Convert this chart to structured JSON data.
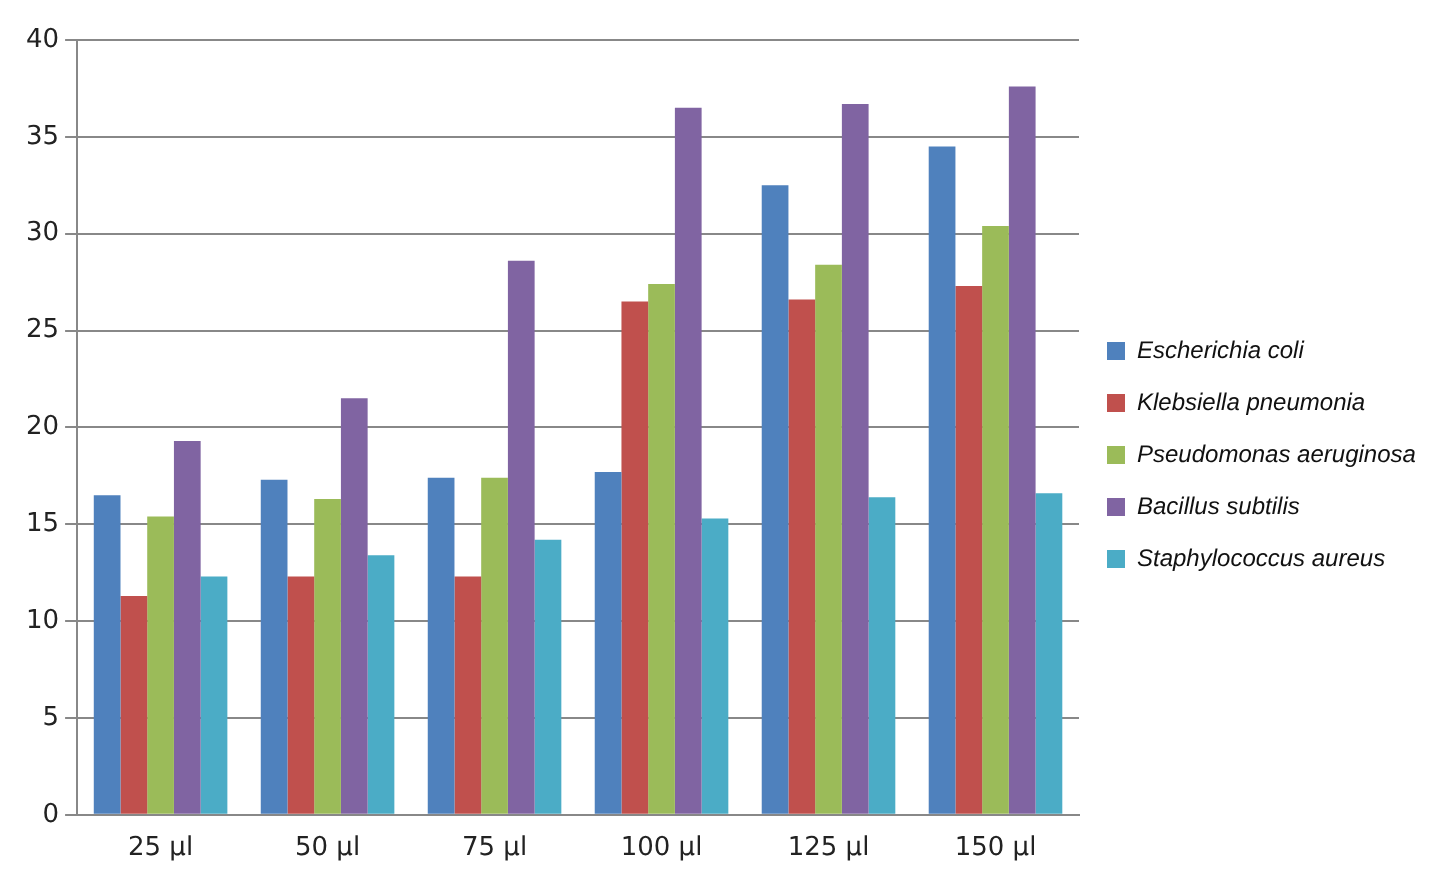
{
  "chart_data": {
    "type": "bar",
    "categories": [
      "25 µl",
      "50 µl",
      "75 µl",
      "100 µl",
      "125 µl",
      "150 µl"
    ],
    "series": [
      {
        "name": "Escherichia coli",
        "color": "#4f81bd",
        "values": [
          16.5,
          17.3,
          17.4,
          17.7,
          32.5,
          34.5
        ]
      },
      {
        "name": "Klebsiella pneumonia",
        "color": "#c0504d",
        "values": [
          11.3,
          12.3,
          12.3,
          26.5,
          26.6,
          27.3
        ]
      },
      {
        "name": "Pseudomonas aeruginosa",
        "color": "#9bbb59",
        "values": [
          15.4,
          16.3,
          17.4,
          27.4,
          28.4,
          30.4
        ]
      },
      {
        "name": "Bacillus subtilis",
        "color": "#8064a2",
        "values": [
          19.3,
          21.5,
          28.6,
          36.5,
          36.7,
          37.6
        ]
      },
      {
        "name": "Staphylococcus aureus",
        "color": "#4bacc6",
        "values": [
          12.3,
          13.4,
          14.2,
          15.3,
          16.4,
          16.6
        ]
      }
    ],
    "ylim": [
      0,
      40
    ],
    "yticks": [
      0,
      5,
      10,
      15,
      20,
      25,
      30,
      35,
      40
    ],
    "grid": "y",
    "legend": "right"
  }
}
